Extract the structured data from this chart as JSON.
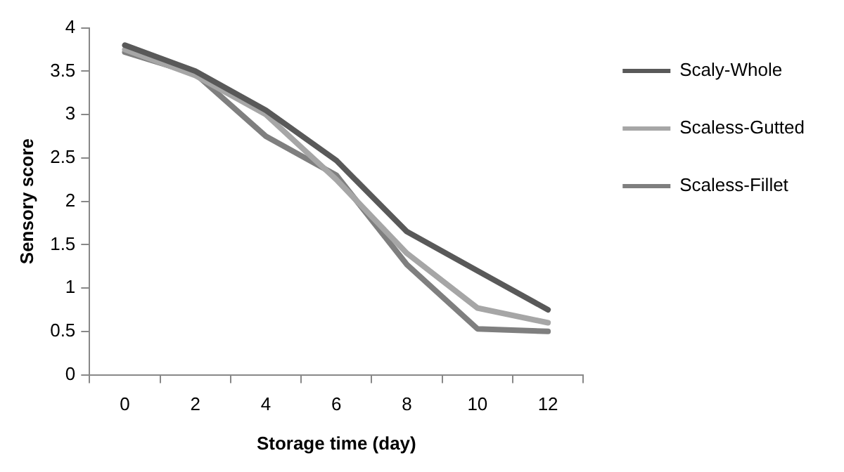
{
  "chart_data": {
    "type": "line",
    "xlabel": "Storage time (day)",
    "ylabel": "Sensory score",
    "categories": [
      "0",
      "2",
      "4",
      "6",
      "8",
      "10",
      "12"
    ],
    "series": [
      {
        "name": "Scaly-Whole",
        "color": "#595959",
        "values": [
          3.8,
          3.5,
          3.05,
          2.47,
          1.65,
          1.2,
          0.75
        ]
      },
      {
        "name": "Scaless-Gutted",
        "color": "#a6a6a6",
        "values": [
          3.75,
          3.45,
          3.0,
          2.25,
          1.4,
          0.77,
          0.6
        ]
      },
      {
        "name": "Scaless-Fillet",
        "color": "#7f7f7f",
        "values": [
          3.72,
          3.47,
          2.75,
          2.3,
          1.27,
          0.53,
          0.5
        ]
      }
    ],
    "ylim": [
      0,
      4
    ],
    "yticks": [
      0,
      0.5,
      1,
      1.5,
      2,
      2.5,
      3,
      3.5,
      4
    ],
    "grid": false,
    "legend": "right",
    "marker": "none",
    "line_style": "solid"
  }
}
